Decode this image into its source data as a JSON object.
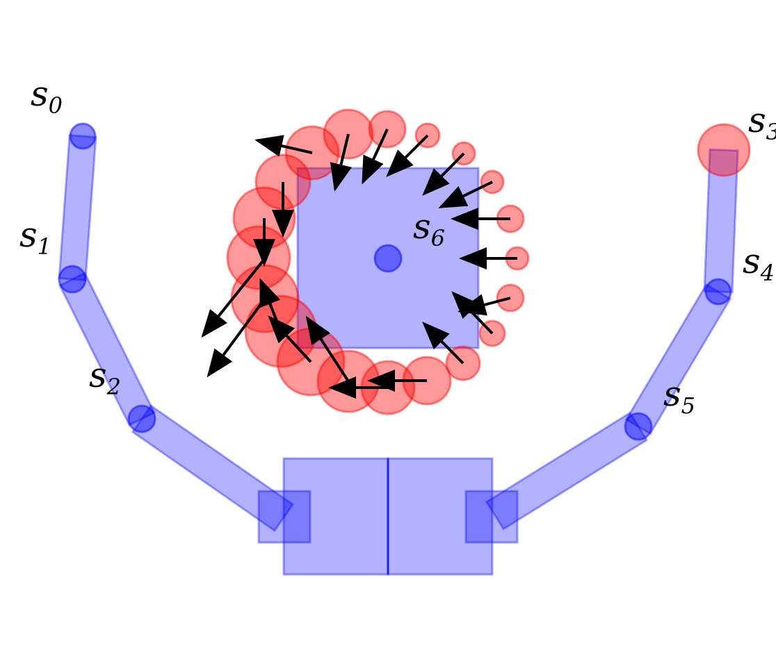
{
  "colors": {
    "body_fill": "#0000ff",
    "body_fill_opacity": 0.3,
    "contact_fill": "#ff0000",
    "contact_fill_opacity": 0.4,
    "arrow_color": "#000000",
    "background": "#ffffff"
  },
  "labels": [
    {
      "id": "s0",
      "base": "s",
      "sub": "0"
    },
    {
      "id": "s1",
      "base": "s",
      "sub": "1"
    },
    {
      "id": "s2",
      "base": "s",
      "sub": "2"
    },
    {
      "id": "s3",
      "base": "s",
      "sub": "3"
    },
    {
      "id": "s4",
      "base": "s",
      "sub": "4"
    },
    {
      "id": "s5",
      "base": "s",
      "sub": "5"
    },
    {
      "id": "s6",
      "base": "s",
      "sub": "6"
    }
  ]
}
